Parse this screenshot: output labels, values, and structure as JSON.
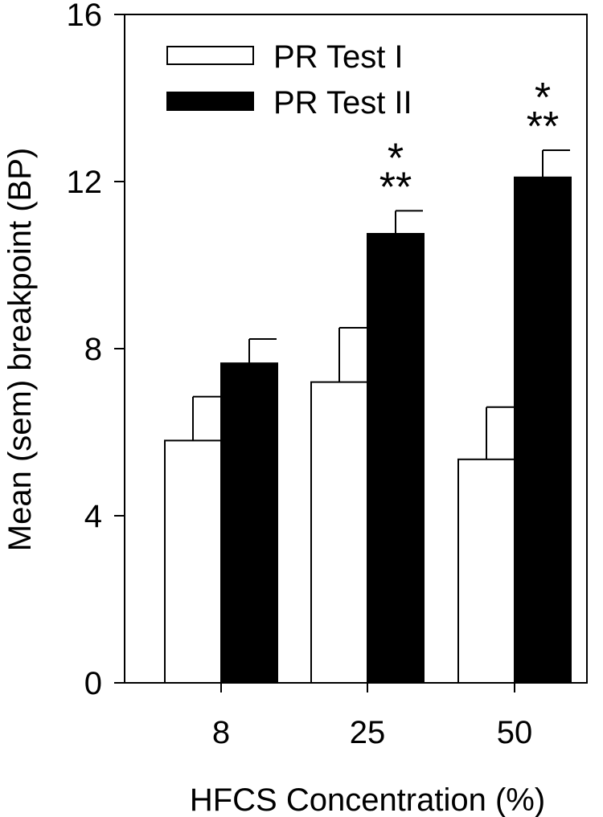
{
  "chart_data": {
    "type": "bar",
    "title": "",
    "xlabel": "HFCS Concentration (%)",
    "ylabel": "Mean (sem) breakpoint (BP)",
    "categories": [
      "8",
      "25",
      "50"
    ],
    "ylim": [
      0,
      16
    ],
    "yticks": [
      0,
      4,
      8,
      12,
      16
    ],
    "grid": false,
    "legend_position": "top-left",
    "series": [
      {
        "name": "PR Test I",
        "color": "#ffffff",
        "values": [
          5.8,
          7.2,
          5.35
        ],
        "errors": [
          1.05,
          1.3,
          1.25
        ]
      },
      {
        "name": "PR Test II",
        "color": "#000000",
        "values": [
          7.65,
          10.75,
          12.1
        ],
        "errors": [
          0.58,
          0.55,
          0.65
        ]
      }
    ],
    "annotations": [
      {
        "category": "25",
        "series": "PR Test II",
        "lines": [
          "*",
          "**"
        ]
      },
      {
        "category": "50",
        "series": "PR Test II",
        "lines": [
          "*",
          "**"
        ]
      }
    ]
  }
}
